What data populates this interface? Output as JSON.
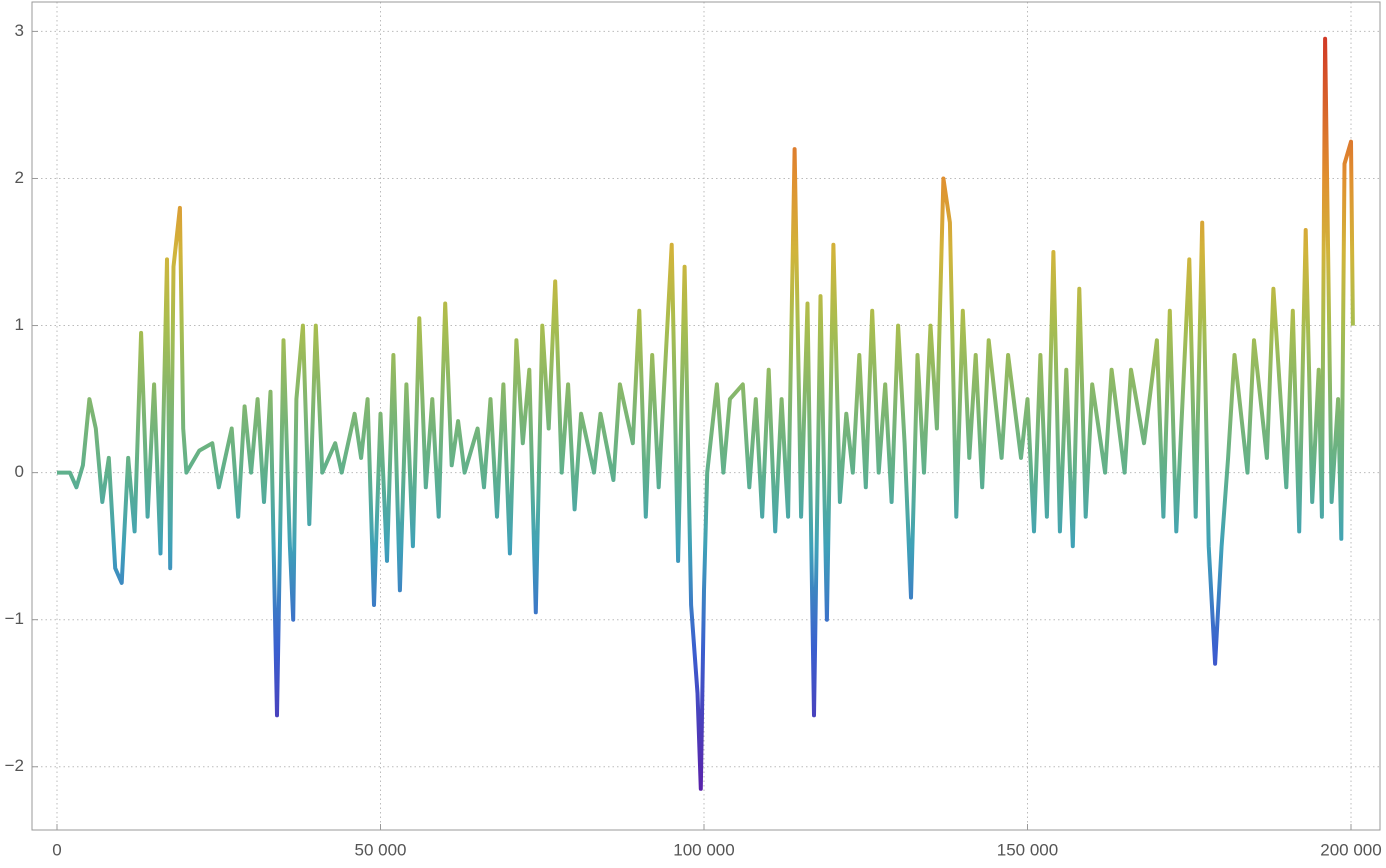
{
  "chart_data": {
    "type": "line",
    "x": [
      0,
      2000,
      3000,
      4000,
      5000,
      6000,
      7000,
      8000,
      9000,
      10000,
      11000,
      12000,
      13000,
      14000,
      15000,
      16000,
      17000,
      17500,
      18000,
      19000,
      19500,
      20000,
      22000,
      24000,
      25000,
      27000,
      28000,
      29000,
      30000,
      31000,
      32000,
      33000,
      34000,
      35000,
      36000,
      36500,
      37000,
      38000,
      39000,
      40000,
      41000,
      43000,
      44000,
      46000,
      47000,
      48000,
      49000,
      50000,
      51000,
      52000,
      53000,
      54000,
      55000,
      56000,
      57000,
      58000,
      59000,
      60000,
      61000,
      62000,
      63000,
      65000,
      66000,
      67000,
      68000,
      69000,
      70000,
      71000,
      72000,
      73000,
      74000,
      75000,
      76000,
      77000,
      78000,
      79000,
      80000,
      81000,
      83000,
      84000,
      86000,
      87000,
      89000,
      90000,
      91000,
      92000,
      93000,
      95000,
      96000,
      97000,
      98000,
      99000,
      99500,
      100000,
      100500,
      102000,
      103000,
      104000,
      106000,
      107000,
      108000,
      109000,
      110000,
      111000,
      112000,
      113000,
      114000,
      115000,
      116000,
      117000,
      118000,
      119000,
      120000,
      121000,
      122000,
      123000,
      124000,
      125000,
      126000,
      127000,
      128000,
      129000,
      130000,
      131000,
      132000,
      133000,
      134000,
      135000,
      136000,
      137000,
      138000,
      139000,
      140000,
      141000,
      142000,
      143000,
      144000,
      146000,
      147000,
      149000,
      150000,
      151000,
      152000,
      153000,
      154000,
      155000,
      156000,
      157000,
      158000,
      159000,
      160000,
      162000,
      163000,
      165000,
      166000,
      168000,
      170000,
      171000,
      172000,
      173000,
      175000,
      176000,
      177000,
      178000,
      179000,
      180000,
      181000,
      182000,
      184000,
      185000,
      187000,
      188000,
      190000,
      191000,
      192000,
      193000,
      194000,
      195000,
      195500,
      196000,
      197000,
      198000,
      198500,
      199000,
      200000,
      200300
    ],
    "series": [
      {
        "values": [
          0,
          0,
          -0.1,
          0.05,
          0.5,
          0.3,
          -0.2,
          0.1,
          -0.65,
          -0.75,
          0.1,
          -0.4,
          0.95,
          -0.3,
          0.6,
          -0.55,
          1.45,
          -0.65,
          1.4,
          1.8,
          0.3,
          0,
          0.15,
          0.2,
          -0.1,
          0.3,
          -0.3,
          0.45,
          0,
          0.5,
          -0.2,
          0.55,
          -1.65,
          0.9,
          -0.5,
          -1.0,
          0.5,
          1.0,
          -0.35,
          1.0,
          0,
          0.2,
          0,
          0.4,
          0.1,
          0.5,
          -0.9,
          0.4,
          -0.6,
          0.8,
          -0.8,
          0.6,
          -0.5,
          1.05,
          -0.1,
          0.5,
          -0.3,
          1.15,
          0.05,
          0.35,
          0,
          0.3,
          -0.1,
          0.5,
          -0.3,
          0.6,
          -0.55,
          0.9,
          0.2,
          0.7,
          -0.95,
          1.0,
          0.3,
          1.3,
          0,
          0.6,
          -0.25,
          0.4,
          0,
          0.4,
          -0.05,
          0.6,
          0.2,
          1.1,
          -0.3,
          0.8,
          -0.1,
          1.55,
          -0.6,
          1.4,
          -0.9,
          -1.5,
          -2.15,
          -0.8,
          0,
          0.6,
          0,
          0.5,
          0.6,
          -0.1,
          0.5,
          -0.3,
          0.7,
          -0.4,
          0.5,
          -0.3,
          2.2,
          -0.3,
          1.15,
          -1.65,
          1.2,
          -1.0,
          1.55,
          -0.2,
          0.4,
          0,
          0.8,
          -0.1,
          1.1,
          0,
          0.6,
          -0.2,
          1.0,
          0.2,
          -0.85,
          0.8,
          0,
          1.0,
          0.3,
          2.0,
          1.7,
          -0.3,
          1.1,
          0.1,
          0.8,
          -0.1,
          0.9,
          0.1,
          0.8,
          0.1,
          0.5,
          -0.4,
          0.8,
          -0.3,
          1.5,
          -0.4,
          0.7,
          -0.5,
          1.25,
          -0.3,
          0.6,
          0,
          0.7,
          0,
          0.7,
          0.2,
          0.9,
          -0.3,
          1.1,
          -0.4,
          1.45,
          -0.3,
          1.7,
          -0.5,
          -1.3,
          -0.5,
          0.1,
          0.8,
          0,
          0.9,
          0.1,
          1.25,
          -0.1,
          1.1,
          -0.4,
          1.65,
          -0.2,
          0.7,
          -0.3,
          2.95,
          -0.2,
          0.5,
          -0.45,
          2.1,
          2.25,
          1.0
        ]
      }
    ],
    "color_scale": [
      {
        "value": -2.2,
        "color": "#5a1fa8"
      },
      {
        "value": -1.2,
        "color": "#3a5fcf"
      },
      {
        "value": -0.5,
        "color": "#3fa2b8"
      },
      {
        "value": 0,
        "color": "#5fb08c"
      },
      {
        "value": 1,
        "color": "#a8bd4f"
      },
      {
        "value": 1.5,
        "color": "#d1b43b"
      },
      {
        "value": 2,
        "color": "#e09030"
      },
      {
        "value": 3,
        "color": "#d03525"
      }
    ],
    "xlim": [
      -3864,
      204482
    ],
    "ylim": [
      -2.43,
      3.2
    ],
    "xticks": [
      0,
      {
        "value": 50000,
        "label": "50 000"
      },
      {
        "value": 100000,
        "label": "100 000"
      },
      {
        "value": 150000,
        "label": "150 000"
      },
      {
        "value": 200000,
        "label": "200 000"
      }
    ],
    "yticks": [
      {
        "value": -2,
        "label": "−2"
      },
      {
        "value": -1,
        "label": "−1"
      },
      0,
      1,
      2,
      3
    ],
    "grid": true
  }
}
